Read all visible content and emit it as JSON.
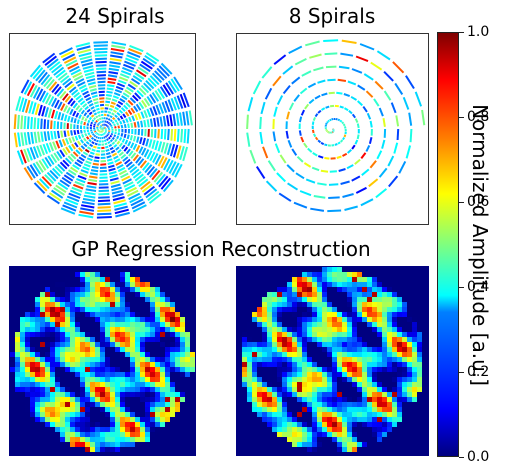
{
  "figure": {
    "titles": {
      "left": "24 Spirals",
      "right": "8 Spirals",
      "bottom": "GP Regression Reconstruction"
    }
  },
  "colorbar": {
    "label": "Normalized Amplitude [a.u.]",
    "ticks": [
      "0.0",
      "0.2",
      "0.4",
      "0.6",
      "0.8",
      "1.0"
    ],
    "range": [
      0.0,
      1.0
    ],
    "colormap": "jet"
  },
  "chart_data": [
    {
      "type": "heatmap",
      "title": "24 Spirals",
      "interleaves": 24,
      "style": "sampled spiral trajectory"
    },
    {
      "type": "heatmap",
      "title": "8 Spirals",
      "interleaves": 8,
      "style": "sampled spiral trajectory"
    },
    {
      "type": "heatmap",
      "title": "GP Regression Reconstruction",
      "source": "24 Spirals",
      "style": "reconstructed map"
    },
    {
      "type": "heatmap",
      "title": "GP Regression Reconstruction",
      "source": "8 Spirals",
      "style": "reconstructed map"
    }
  ]
}
